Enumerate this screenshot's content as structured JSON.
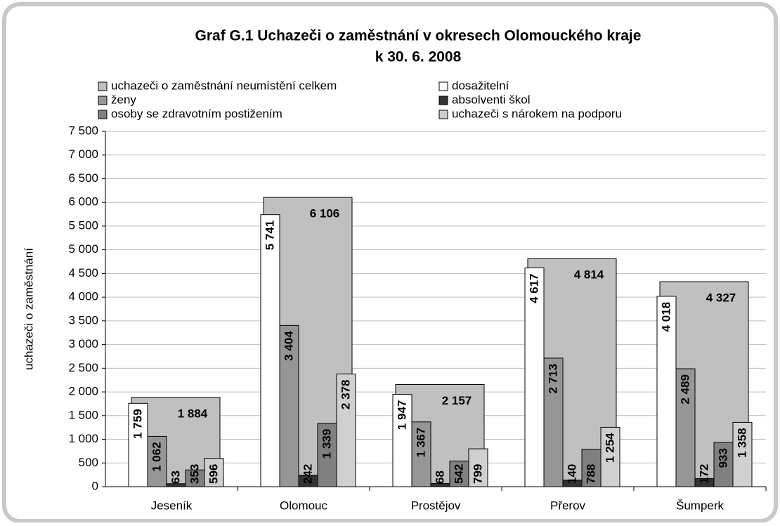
{
  "chart_data": {
    "type": "bar",
    "title": "Graf G.1 Uchazeči o zaměstnání v okresech Olomouckého kraje",
    "subtitle": "k 30. 6. 2008",
    "y_label": "uchazeči o zaměstnání",
    "categories": [
      "Jeseník",
      "Olomouc",
      "Prostějov",
      "Přerov",
      "Šumperk"
    ],
    "series": [
      {
        "name": "uchazeči o zaměstnání neumístění celkem",
        "color": "#c0c0c0",
        "values": [
          1884,
          6106,
          2157,
          4814,
          4327
        ],
        "value_labels": [
          "1 884",
          "6 106",
          "2 157",
          "4 814",
          "4 327"
        ]
      },
      {
        "name": "dosažitelní",
        "color": "#ffffff",
        "values": [
          1759,
          5741,
          1947,
          4617,
          4018
        ],
        "value_labels": [
          "1 759",
          "5 741",
          "1 947",
          "4 617",
          "4 018"
        ]
      },
      {
        "name": "ženy",
        "color": "#969696",
        "values": [
          1062,
          3404,
          1367,
          2713,
          2489
        ],
        "value_labels": [
          "1 062",
          "3 404",
          "1 367",
          "2 713",
          "2 489"
        ]
      },
      {
        "name": "absolventi škol",
        "color": "#333333",
        "values": [
          63,
          242,
          68,
          140,
          172
        ],
        "value_labels": [
          "63",
          "242",
          "68",
          "140",
          "172"
        ]
      },
      {
        "name": "osoby se zdravotním postižením",
        "color": "#808080",
        "values": [
          353,
          1339,
          542,
          788,
          933
        ],
        "value_labels": [
          "353",
          "1 339",
          "542",
          "788",
          "933"
        ]
      },
      {
        "name": "uchazeči s nárokem na podporu",
        "color": "#d0d0d0",
        "values": [
          596,
          2378,
          799,
          1254,
          1358
        ],
        "value_labels": [
          "596",
          "2 378",
          "799",
          "1 254",
          "1 358"
        ]
      }
    ],
    "ylim": [
      0,
      7500
    ],
    "yticks": [
      0,
      500,
      {
        "value": 1000,
        "label": "1 000"
      },
      {
        "value": 1500,
        "label": "1 500"
      },
      {
        "value": 2000,
        "label": "2 000"
      },
      {
        "value": 2500,
        "label": "2 500"
      },
      {
        "value": 3000,
        "label": "3 000"
      },
      {
        "value": 3500,
        "label": "3 500"
      },
      {
        "value": 4000,
        "label": "4 000"
      },
      {
        "value": 4500,
        "label": "4 500"
      },
      {
        "value": 5000,
        "label": "5 000"
      },
      {
        "value": 5500,
        "label": "5 500"
      },
      {
        "value": 6000,
        "label": "6 000"
      },
      {
        "value": 6500,
        "label": "6 500"
      },
      {
        "value": 7000,
        "label": "7 000"
      },
      {
        "value": 7500,
        "label": "7 500"
      }
    ],
    "grid": true
  }
}
